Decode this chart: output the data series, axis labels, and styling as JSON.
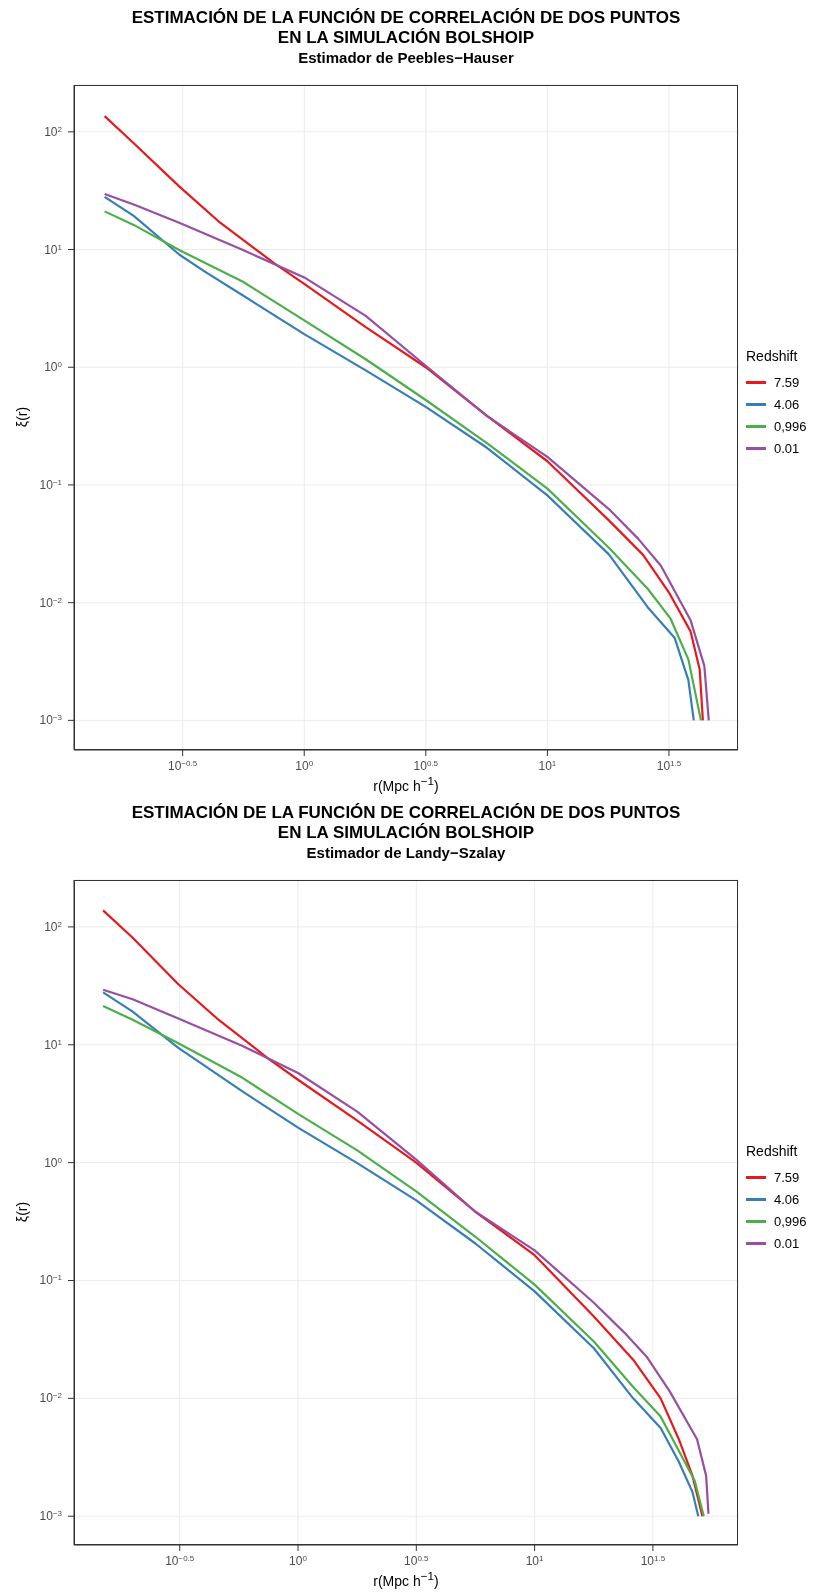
{
  "chart_data": [
    {
      "type": "line",
      "title": "ESTIMACIÓN DE LA FUNCIÓN DE CORRELACIÓN DE DOS PUNTOS\nEN LA SIMULACIÓN BOLSHOIP",
      "subtitle": "Estimador de Peebles−Hauser",
      "xlabel": "r(Mpc h$^{−1}$)",
      "ylabel": "ξ(r)",
      "legend_title": "Redshift",
      "log": "xy",
      "grid": true,
      "legend": "right",
      "xlim": [
        0.113,
        60.8
      ],
      "ylim": [
        0.00056,
        250
      ],
      "xticks": [
        {
          "value": 0.3162,
          "label": "10$^{−0.5}$"
        },
        {
          "value": 1,
          "label": "10$^{0}$"
        },
        {
          "value": 3.162,
          "label": "10$^{0.5}$"
        },
        {
          "value": 10,
          "label": "10$^{1}$"
        },
        {
          "value": 31.62,
          "label": "10$^{1.5}$"
        }
      ],
      "yticks": [
        {
          "value": 0.001,
          "label": "10$^{−3}$"
        },
        {
          "value": 0.01,
          "label": "10$^{−2}$"
        },
        {
          "value": 0.1,
          "label": "10$^{−1}$"
        },
        {
          "value": 1,
          "label": "10$^{0}$"
        },
        {
          "value": 10,
          "label": "10$^{1}$"
        },
        {
          "value": 100,
          "label": "10$^{2}$"
        }
      ],
      "series": [
        {
          "name": "7.59",
          "color": "#e41a1c",
          "x": [
            0.151,
            0.199,
            0.306,
            0.451,
            0.756,
            1,
            1.79,
            3.16,
            5.64,
            10,
            17.9,
            24.7,
            31.7,
            38.8,
            42.3,
            43.6
          ],
          "values": [
            136,
            80,
            34.4,
            16.9,
            7.6,
            5.1,
            2.19,
            1,
            0.386,
            0.159,
            0.05,
            0.0256,
            0.0121,
            0.0057,
            0.0027,
            0.001
          ]
        },
        {
          "name": "4.06",
          "color": "#377eb8",
          "x": [
            0.151,
            0.199,
            0.306,
            0.396,
            0.56,
            1,
            1.79,
            3.16,
            5.64,
            10,
            17.9,
            25.8,
            33.4,
            38,
            40
          ],
          "values": [
            28,
            19.3,
            9.07,
            6.36,
            4.07,
            1.91,
            0.94,
            0.461,
            0.207,
            0.0815,
            0.0257,
            0.0092,
            0.005,
            0.0022,
            0.001
          ]
        },
        {
          "name": "0,996",
          "color": "#4daf4a",
          "x": [
            0.151,
            0.199,
            0.306,
            0.56,
            1,
            1.79,
            3.16,
            5.64,
            10,
            17.9,
            25.8,
            32,
            38,
            42.8
          ],
          "values": [
            21.1,
            16.2,
            9.9,
            5.32,
            2.5,
            1.17,
            0.527,
            0.227,
            0.0931,
            0.0293,
            0.0132,
            0.0074,
            0.0033,
            0.001
          ]
        },
        {
          "name": "0.01",
          "color": "#984ea3",
          "x": [
            0.151,
            0.199,
            0.306,
            0.56,
            1,
            1.79,
            3.16,
            5.64,
            10,
            17.9,
            23.6,
            29.3,
            38.8,
            44.2,
            46.1
          ],
          "values": [
            29.6,
            24.1,
            16.9,
            9.9,
            5.8,
            2.73,
            1.03,
            0.386,
            0.173,
            0.0624,
            0.035,
            0.0206,
            0.0071,
            0.0029,
            0.001
          ]
        }
      ]
    },
    {
      "type": "line",
      "title": "ESTIMACIÓN DE LA FUNCIÓN DE CORRELACIÓN DE DOS PUNTOS\nEN LA SIMULACIÓN BOLSHOIP",
      "subtitle": "Estimador de Landy−Szalay",
      "xlabel": "r(Mpc h$^{−1}$)",
      "ylabel": "ξ(r)",
      "legend_title": "Redshift",
      "log": "xy",
      "grid": true,
      "legend": "right",
      "xlim": [
        0.113,
        72.4
      ],
      "ylim": [
        0.00057,
        250
      ],
      "xticks": [
        {
          "value": 0.3162,
          "label": "10$^{−0.5}$"
        },
        {
          "value": 1,
          "label": "10$^{0}$"
        },
        {
          "value": 3.162,
          "label": "10$^{0.5}$"
        },
        {
          "value": 10,
          "label": "10$^{1}$"
        },
        {
          "value": 31.62,
          "label": "10$^{1.5}$"
        }
      ],
      "yticks": [
        {
          "value": 0.001,
          "label": "10$^{−3}$"
        },
        {
          "value": 0.01,
          "label": "10$^{−2}$"
        },
        {
          "value": 0.1,
          "label": "10$^{−1}$"
        },
        {
          "value": 1,
          "label": "10$^{0}$"
        },
        {
          "value": 10,
          "label": "10$^{1}$"
        },
        {
          "value": 100,
          "label": "10$^{2}$"
        }
      ],
      "series": [
        {
          "name": "7.59",
          "color": "#e41a1c",
          "x": [
            0.15,
            0.2,
            0.312,
            0.455,
            0.756,
            1,
            1.78,
            3.16,
            5.62,
            10,
            17.8,
            26.1,
            34.1,
            40.7,
            46.5,
            51.2
          ],
          "values": [
            138,
            80.8,
            32.6,
            16.7,
            7.52,
            5.05,
            2.27,
            1,
            0.383,
            0.164,
            0.0495,
            0.0213,
            0.01,
            0.0045,
            0.0022,
            0.001
          ]
        },
        {
          "name": "4.06",
          "color": "#377eb8",
          "x": [
            0.15,
            0.2,
            0.312,
            0.58,
            1,
            1.78,
            3.16,
            5.62,
            10,
            17.8,
            26.1,
            34.1,
            40.7,
            46.5,
            49.2
          ],
          "values": [
            27.8,
            19.1,
            9.4,
            4.04,
            1.98,
            0.99,
            0.478,
            0.206,
            0.0808,
            0.0266,
            0.01,
            0.0056,
            0.0029,
            0.0016,
            0.001
          ]
        },
        {
          "name": "0,996",
          "color": "#4daf4a",
          "x": [
            0.15,
            0.2,
            0.312,
            0.58,
            1,
            1.78,
            3.16,
            5.62,
            10,
            17.8,
            26.1,
            34.1,
            40.7,
            47.5,
            51.9
          ],
          "values": [
            21.3,
            16.3,
            10.3,
            5.27,
            2.59,
            1.27,
            0.571,
            0.235,
            0.0923,
            0.0304,
            0.0125,
            0.007,
            0.0036,
            0.002,
            0.001
          ]
        },
        {
          "name": "0.01",
          "color": "#984ea3",
          "x": [
            0.15,
            0.2,
            0.312,
            0.58,
            1,
            1.78,
            3.16,
            5.62,
            10,
            17.8,
            23.9,
            29.9,
            37.3,
            48.6,
            53.1,
            54.3
          ],
          "values": [
            29.3,
            24.3,
            16.7,
            9.83,
            5.76,
            2.71,
            1.06,
            0.383,
            0.18,
            0.0647,
            0.0363,
            0.0223,
            0.0114,
            0.0045,
            0.0022,
            0.00105
          ]
        }
      ]
    }
  ]
}
